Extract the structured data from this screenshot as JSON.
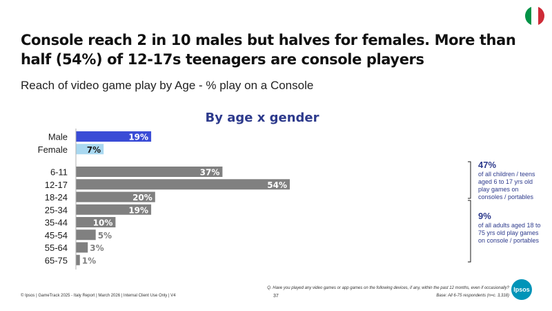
{
  "header": {
    "title": "Console reach 2 in 10 males but halves for females. More than half (54%) of 12-17s teenagers are console players",
    "subtitle": "Reach of video game play by Age - % play on a Console",
    "flag_colors": [
      "#009246",
      "#ffffff",
      "#ce2b37"
    ]
  },
  "chart_data": {
    "type": "bar",
    "orientation": "horizontal",
    "title": "By age x gender",
    "xlim": [
      0,
      60
    ],
    "groups": [
      {
        "categories": [
          "Male",
          "Female"
        ],
        "values": [
          19,
          7
        ],
        "labels": [
          "19%",
          "7%"
        ],
        "colors": [
          "#3a4cd6",
          "#a9d8f0"
        ]
      },
      {
        "categories": [
          "6-11",
          "12-17",
          "18-24",
          "25-34",
          "35-44",
          "45-54",
          "55-64",
          "65-75"
        ],
        "values": [
          37,
          54,
          20,
          19,
          10,
          5,
          3,
          1
        ],
        "labels": [
          "37%",
          "54%",
          "20%",
          "19%",
          "10%",
          "5%",
          "3%",
          "1%"
        ],
        "colors": [
          "#808080",
          "#808080",
          "#808080",
          "#808080",
          "#808080",
          "#808080",
          "#808080",
          "#808080"
        ]
      }
    ]
  },
  "callouts": [
    {
      "pct": "47%",
      "text": "of all children / teens aged 6 to 17 yrs old play games on consoles / portables"
    },
    {
      "pct": "9%",
      "text": "of all adults aged 18 to 75 yrs old play games on console / portables"
    }
  ],
  "footer": {
    "copyright": "© Ipsos | GameTrack 2025 - Italy Report | March 2026 | Internal Client Use Only | V4",
    "page": "37",
    "question": "Q. Have you played any video games or app games on the following devices, if any, within the past 12 months, even if occasionally?",
    "base": "Base: All 6-75 respondents (n=c. 3,318)",
    "logo": "Ipsos"
  }
}
